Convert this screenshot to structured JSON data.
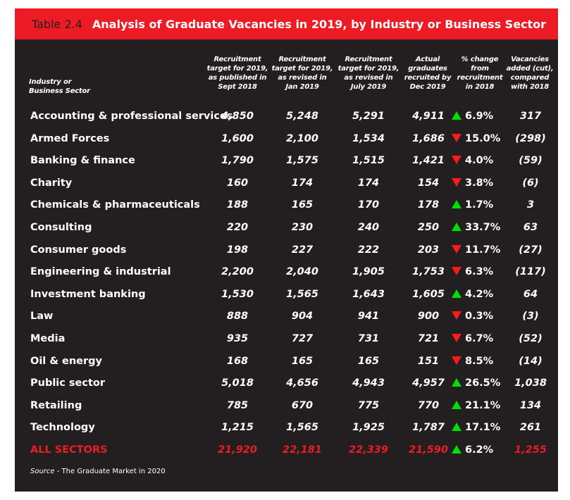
{
  "title": {
    "number": "Table 2.4",
    "text": "Analysis of Graduate Vacancies in 2019, by Industry or Business Sector"
  },
  "headers": {
    "sector": [
      "Industry or",
      "Business Sector"
    ],
    "col1": [
      "Recruitment",
      "target for 2019,",
      "as published in",
      "Sept 2018"
    ],
    "col2": [
      "Recruitment",
      "target for 2019,",
      "as revised in",
      "Jan 2019"
    ],
    "col3": [
      "Recruitment",
      "target for 2019,",
      "as revised in",
      "July 2019"
    ],
    "col4": [
      "Actual",
      "graduates",
      "recruited by",
      "Dec 2019"
    ],
    "col5": [
      "% change",
      "from",
      "recruitment",
      "in 2018"
    ],
    "col6": [
      "Vacancies",
      "added (cut),",
      "compared",
      "with 2018"
    ]
  },
  "rows": [
    {
      "sector": "Accounting & professional services",
      "sept": "4,850",
      "jan": "5,248",
      "july": "5,291",
      "actual": "4,911",
      "dir": "up",
      "change": "6.9%",
      "added": "317"
    },
    {
      "sector": "Armed Forces",
      "sept": "1,600",
      "jan": "2,100",
      "july": "1,534",
      "actual": "1,686",
      "dir": "down",
      "change": "15.0%",
      "added": "(298)"
    },
    {
      "sector": "Banking & finance",
      "sept": "1,790",
      "jan": "1,575",
      "july": "1,515",
      "actual": "1,421",
      "dir": "down",
      "change": "4.0%",
      "added": "(59)"
    },
    {
      "sector": "Charity",
      "sept": "160",
      "jan": "174",
      "july": "174",
      "actual": "154",
      "dir": "down",
      "change": "3.8%",
      "added": "(6)"
    },
    {
      "sector": "Chemicals & pharmaceuticals",
      "sept": "188",
      "jan": "165",
      "july": "170",
      "actual": "178",
      "dir": "up",
      "change": "1.7%",
      "added": "3"
    },
    {
      "sector": "Consulting",
      "sept": "220",
      "jan": "230",
      "july": "240",
      "actual": "250",
      "dir": "up",
      "change": "33.7%",
      "added": "63"
    },
    {
      "sector": "Consumer goods",
      "sept": "198",
      "jan": "227",
      "july": "222",
      "actual": "203",
      "dir": "down",
      "change": "11.7%",
      "added": "(27)"
    },
    {
      "sector": "Engineering & industrial",
      "sept": "2,200",
      "jan": "2,040",
      "july": "1,905",
      "actual": "1,753",
      "dir": "down",
      "change": "6.3%",
      "added": "(117)"
    },
    {
      "sector": "Investment banking",
      "sept": "1,530",
      "jan": "1,565",
      "july": "1,643",
      "actual": "1,605",
      "dir": "up",
      "change": "4.2%",
      "added": "64"
    },
    {
      "sector": "Law",
      "sept": "888",
      "jan": "904",
      "july": "941",
      "actual": "900",
      "dir": "down",
      "change": "0.3%",
      "added": "(3)"
    },
    {
      "sector": "Media",
      "sept": "935",
      "jan": "727",
      "july": "731",
      "actual": "721",
      "dir": "down",
      "change": "6.7%",
      "added": "(52)"
    },
    {
      "sector": "Oil & energy",
      "sept": "168",
      "jan": "165",
      "july": "165",
      "actual": "151",
      "dir": "down",
      "change": "8.5%",
      "added": "(14)"
    },
    {
      "sector": "Public sector",
      "sept": "5,018",
      "jan": "4,656",
      "july": "4,943",
      "actual": "4,957",
      "dir": "up",
      "change": "26.5%",
      "added": "1,038"
    },
    {
      "sector": "Retailing",
      "sept": "785",
      "jan": "670",
      "july": "775",
      "actual": "770",
      "dir": "up",
      "change": "21.1%",
      "added": "134"
    },
    {
      "sector": "Technology",
      "sept": "1,215",
      "jan": "1,565",
      "july": "1,925",
      "actual": "1,787",
      "dir": "up",
      "change": "17.1%",
      "added": "261"
    }
  ],
  "total": {
    "sector": "ALL SECTORS",
    "sept": "21,920",
    "jan": "22,181",
    "july": "22,339",
    "actual": "21,590",
    "dir": "up",
    "change": "6.2%",
    "added": "1,255"
  },
  "source": {
    "label": "Source",
    "text": " - The Graduate Market in 2020"
  },
  "colors": {
    "panel": "#231f20",
    "accent": "#ed1c24",
    "up": "#00e000",
    "down": "#ff1a1a"
  }
}
